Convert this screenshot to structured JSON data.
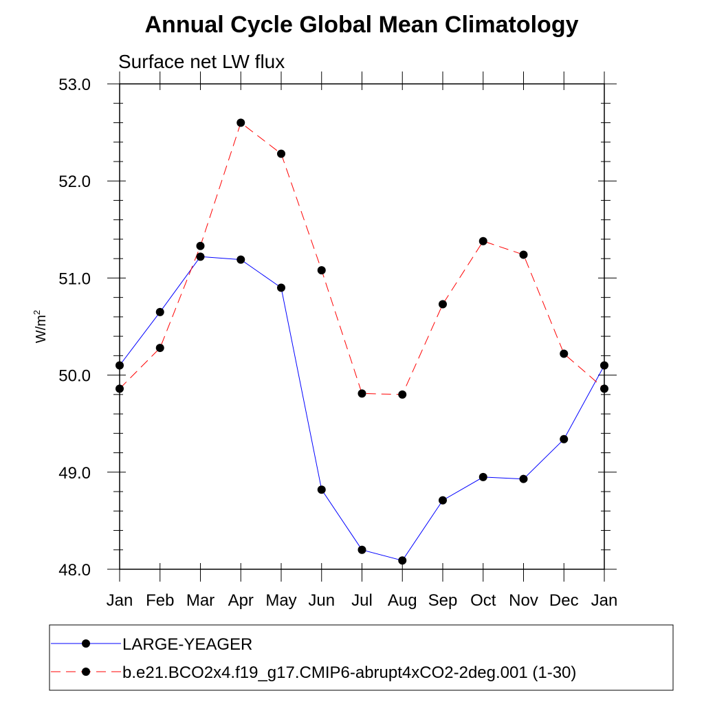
{
  "chart_data": {
    "type": "line",
    "title": "Annual Cycle Global Mean Climatology",
    "subtitle": "Surface net LW flux",
    "ylabel_main": "W/m",
    "ylabel_sup": "2",
    "xlabel": "",
    "categories": [
      "Jan",
      "Feb",
      "Mar",
      "Apr",
      "May",
      "Jun",
      "Jul",
      "Aug",
      "Sep",
      "Oct",
      "Nov",
      "Dec",
      "Jan"
    ],
    "ylim": [
      48.0,
      53.0
    ],
    "yticks": [
      48.0,
      49.0,
      50.0,
      51.0,
      52.0,
      53.0
    ],
    "ytick_labels": [
      "48.0",
      "49.0",
      "50.0",
      "51.0",
      "52.0",
      "53.0"
    ],
    "y_minor_step": 0.2,
    "grid": false,
    "legend_position": "bottom",
    "series": [
      {
        "name": "LARGE-YEAGER",
        "color": "#0000ff",
        "dash": "solid",
        "values": [
          50.1,
          50.65,
          51.22,
          51.19,
          50.9,
          48.82,
          48.2,
          48.09,
          48.71,
          48.95,
          48.93,
          49.34,
          50.1
        ]
      },
      {
        "name": "b.e21.BCO2x4.f19_g17.CMIP6-abrupt4xCO2-2deg.001 (1-30)",
        "color": "#ff0000",
        "dash": "dashed",
        "values": [
          49.86,
          50.28,
          51.33,
          52.6,
          52.28,
          51.08,
          49.81,
          49.8,
          50.73,
          51.38,
          51.24,
          50.22,
          49.86
        ]
      }
    ]
  }
}
